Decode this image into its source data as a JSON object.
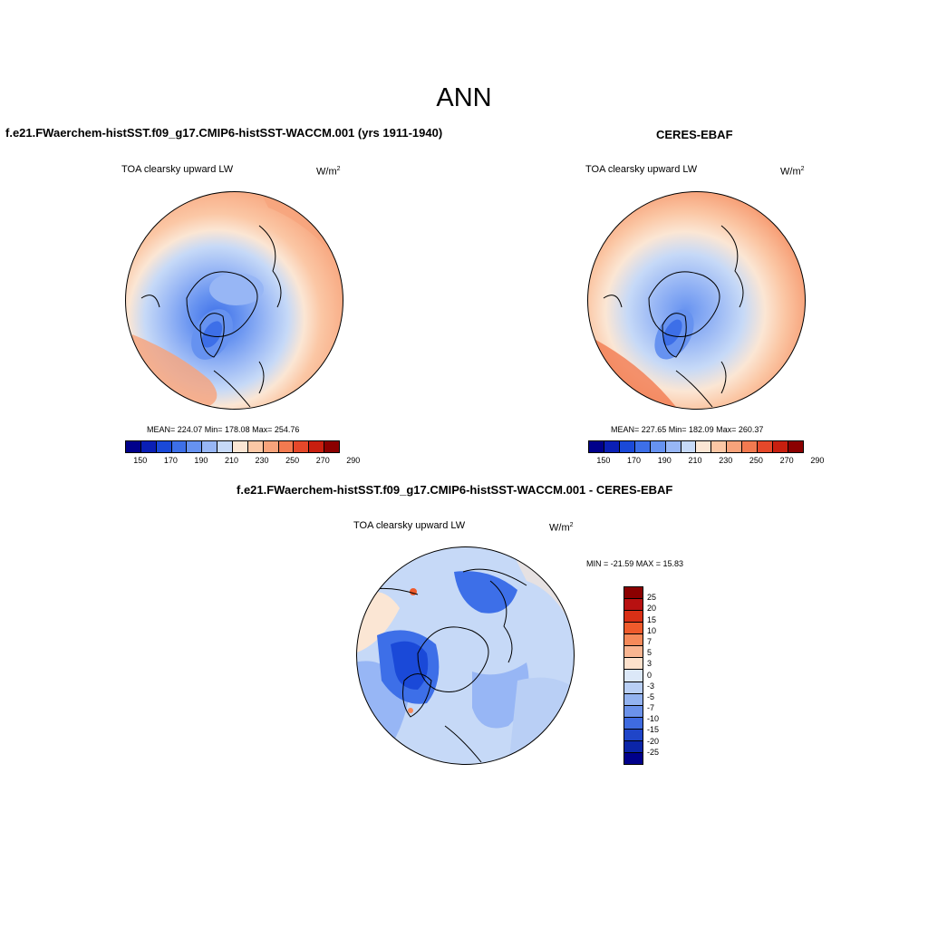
{
  "season": "ANN",
  "panels": [
    {
      "title": "f.e21.FWaerchem-histSST.f09_g17.CMIP6-histSST-WACCM.001 (yrs 1911-1940)",
      "variable": "TOA clearsky upward LW",
      "units": "W/m",
      "units_sup": "2",
      "stats": "MEAN= 224.07  Min= 178.08  Max= 254.76"
    },
    {
      "title": "CERES-EBAF",
      "variable": "TOA clearsky upward LW",
      "units": "W/m",
      "units_sup": "2",
      "stats": "MEAN= 227.65  Min= 182.09  Max= 260.37"
    }
  ],
  "diff_panel": {
    "title": "f.e21.FWaerchem-histSST.f09_g17.CMIP6-histSST-WACCM.001 - CERES-EBAF",
    "variable": "TOA clearsky upward LW",
    "units": "W/m",
    "units_sup": "2",
    "stats": "MIN = -21.59 MAX =  15.83"
  },
  "abs_colorbar": {
    "colors": [
      "#00008b",
      "#0a1fb5",
      "#1a49d8",
      "#3d6fe8",
      "#6692f0",
      "#97b6f5",
      "#c6d9f7",
      "#fbe6d4",
      "#fbc7a5",
      "#f7a37b",
      "#f27a50",
      "#e5482a",
      "#c81f0f",
      "#8b0000"
    ],
    "labels": [
      "150",
      "170",
      "190",
      "210",
      "230",
      "250",
      "270",
      "290"
    ]
  },
  "diff_colorbar": {
    "colors": [
      "#8b0000",
      "#b81111",
      "#d93016",
      "#ef5b2c",
      "#f68a5a",
      "#f9b591",
      "#fde1cc",
      "#dce8f8",
      "#b9cff5",
      "#93b3f0",
      "#6b92ea",
      "#3f6be0",
      "#1f45c8",
      "#0b25a8",
      "#00008b"
    ],
    "labels": [
      "25",
      "20",
      "15",
      "10",
      "7",
      "5",
      "3",
      "0",
      "-3",
      "-5",
      "-7",
      "-10",
      "-15",
      "-20",
      "-25"
    ]
  }
}
